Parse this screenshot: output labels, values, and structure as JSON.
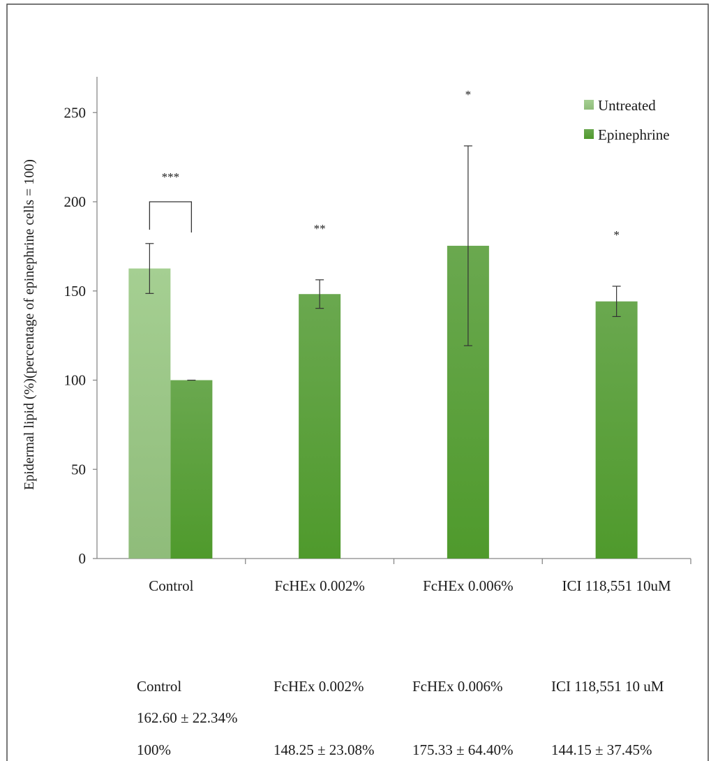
{
  "chart_data": {
    "type": "bar",
    "title": "",
    "xlabel": "",
    "ylabel": "Epidermal lipid (%)(percentage of epinephrine cells = 100)",
    "ylim": [
      0,
      270
    ],
    "yticks": [
      0,
      50,
      100,
      150,
      200,
      250
    ],
    "grid": false,
    "legend_position": "top-right",
    "categories": [
      "Control",
      "FcHEx 0.002%",
      "FcHEx 0.006%",
      "ICI 118,551 10uM"
    ],
    "series": [
      {
        "name": "Untreated",
        "color": "#9dc88a",
        "values": [
          162.6,
          null,
          null,
          null
        ],
        "errors": [
          14,
          null,
          null,
          null
        ]
      },
      {
        "name": "Epinephrine",
        "color": "#5fa13e",
        "values": [
          100,
          148.25,
          175.33,
          144.15
        ],
        "errors": [
          0,
          8,
          56,
          8.5
        ]
      }
    ],
    "annotations": [
      {
        "category": "Control",
        "text": "***",
        "bracket": true
      },
      {
        "category": "FcHEx 0.002%",
        "text": "**"
      },
      {
        "category": "FcHEx 0.006%",
        "text": "*"
      },
      {
        "category": "ICI 118,551 10uM",
        "text": "*"
      }
    ]
  },
  "summary_table": {
    "headers": [
      "Control",
      "FcHEx 0.002%",
      "FcHEx 0.006%",
      "ICI 118,551 10 uM"
    ],
    "untreated_row": [
      "162.60 ± 22.34%",
      "",
      "",
      ""
    ],
    "epinephrine_row": [
      "100%",
      "148.25 ± 23.08%",
      "175.33 ± 64.40%",
      "144.15 ± 37.45%"
    ]
  }
}
